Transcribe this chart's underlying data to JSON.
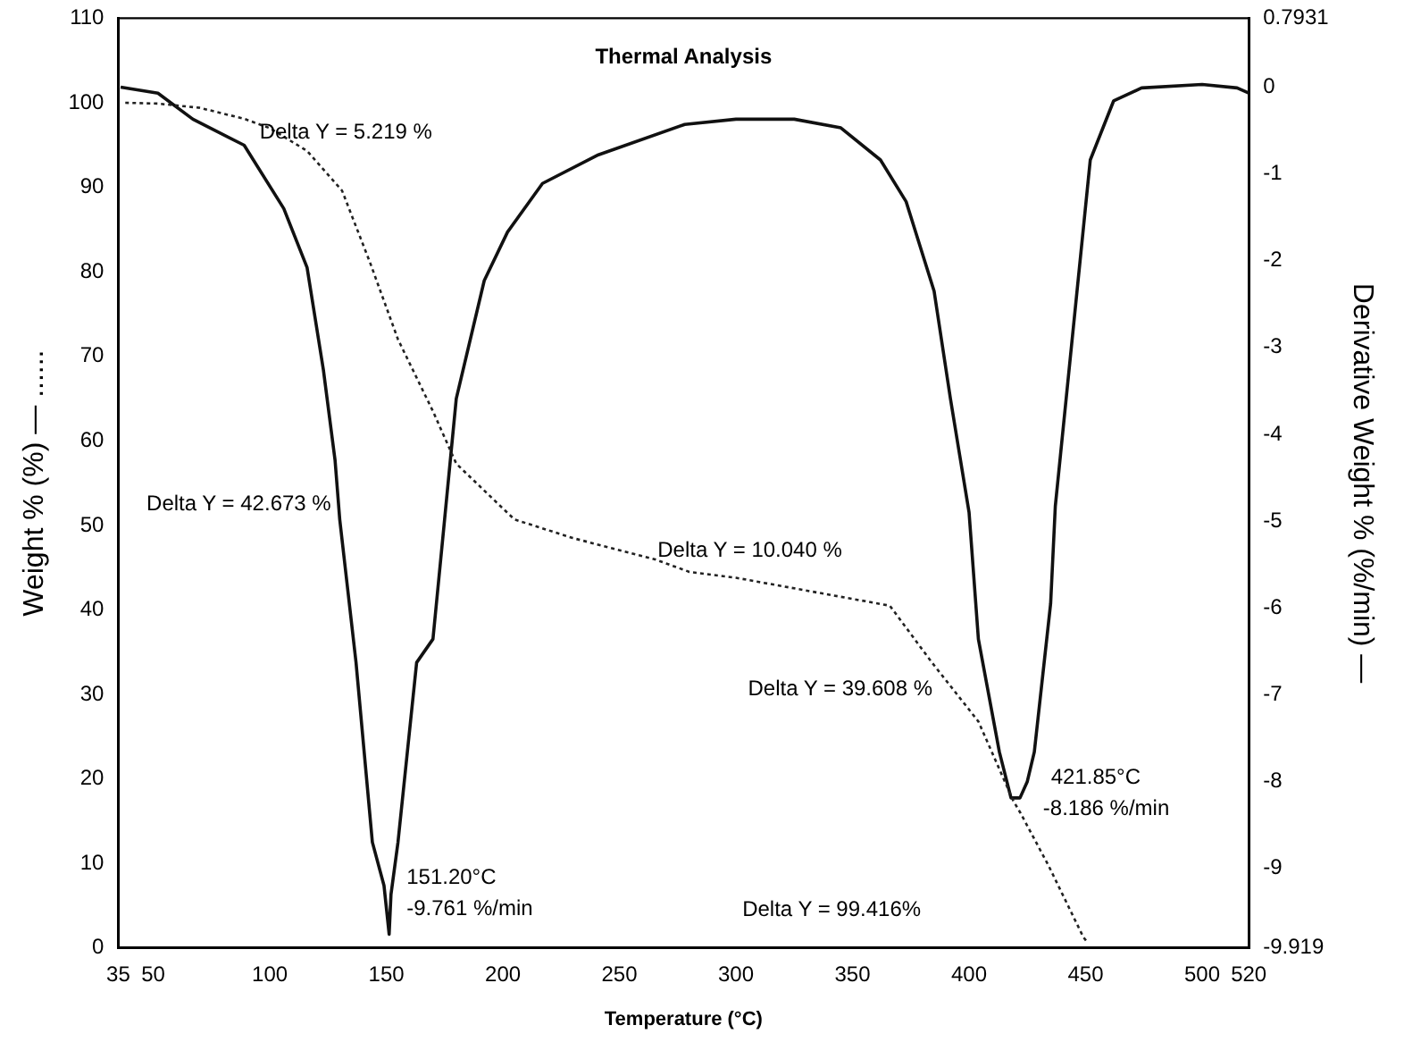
{
  "chart_data": {
    "type": "line",
    "title": "Thermal Analysis",
    "xlabel": "Temperature (°C)",
    "ylabel": "Weight % (%) — ......",
    "y2label": "Derivative Weight % (%/min) —",
    "xlim": [
      35,
      520
    ],
    "xticks": [
      35,
      50,
      100,
      150,
      200,
      250,
      300,
      350,
      400,
      450,
      500,
      520
    ],
    "ylim": [
      0,
      110
    ],
    "yticks": [
      0,
      10,
      20,
      30,
      40,
      50,
      60,
      70,
      80,
      90,
      100,
      110
    ],
    "y2lim": [
      -9.919,
      0.7931
    ],
    "y2ticks": [
      -9.919,
      -9,
      -8,
      -7,
      -6,
      -5,
      -4,
      -3,
      -2,
      -1,
      0,
      0.7931
    ],
    "grid": false,
    "legend": false,
    "marker": "none",
    "series": [
      {
        "color": "#222222",
        "line_style": "dotted",
        "x": [
          38,
          52,
          70,
          89,
          100,
          116,
          131,
          143,
          155,
          170,
          180,
          200,
          205,
          230,
          265,
          280,
          300,
          330,
          360,
          366,
          384,
          404,
          419,
          422,
          434,
          449,
          451
        ],
        "values": [
          100,
          99.9,
          99.4,
          98.1,
          97,
          94.3,
          89.6,
          81.1,
          72,
          63.5,
          57.3,
          52,
          50.7,
          48.5,
          46,
          44.5,
          43.8,
          42.3,
          40.8,
          40.5,
          33.8,
          26.8,
          17.4,
          16,
          9.8,
          1.3,
          0.6
        ]
      },
      {
        "color": "#111111",
        "line_style": "solid",
        "axis": "y2",
        "x": [
          36,
          52,
          67,
          89,
          106,
          116,
          123,
          128,
          130,
          137,
          144,
          149,
          151.2,
          152,
          155,
          163,
          170,
          175,
          180,
          192,
          202,
          217,
          241,
          278,
          300,
          325,
          345,
          362,
          373,
          385,
          392,
          400,
          404,
          413,
          418,
          421.85,
          425,
          428,
          435,
          437,
          452,
          462,
          474,
          500,
          515,
          520
        ],
        "values": [
          0,
          -0.07,
          -0.37,
          -0.67,
          -1.4,
          -2.08,
          -3.26,
          -4.3,
          -4.98,
          -6.63,
          -8.7,
          -9.2,
          -9.76,
          -9.3,
          -8.7,
          -6.63,
          -6.36,
          -4.98,
          -3.59,
          -2.23,
          -1.67,
          -1.11,
          -0.78,
          -0.43,
          -0.37,
          -0.37,
          -0.47,
          -0.84,
          -1.32,
          -2.35,
          -3.59,
          -4.9,
          -6.36,
          -7.66,
          -8.19,
          -8.19,
          -8.0,
          -7.66,
          -5.95,
          -4.83,
          -0.84,
          -0.16,
          -0.01,
          0.03,
          -0.01,
          -0.07
        ]
      }
    ],
    "annotations": [
      "Delta Y = 5.219 %",
      "Delta Y = 42.673 %",
      "Delta Y = 10.040 %",
      "Delta Y = 39.608 %",
      "Delta Y = 99.416%",
      "151.20°C",
      "-9.761 %/min",
      "421.85°C",
      "-8.186 %/min"
    ]
  }
}
